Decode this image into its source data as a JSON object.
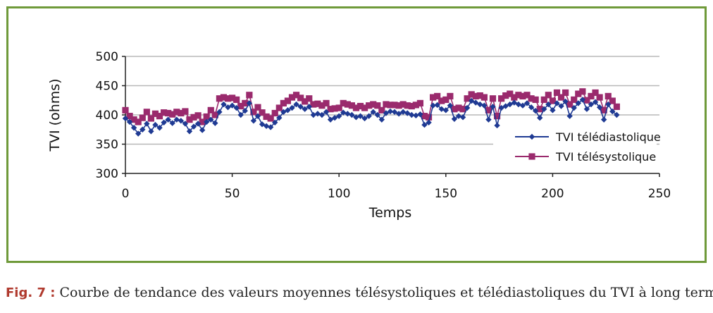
{
  "caption": {
    "label": "Fig. 7 :",
    "text": "Courbe de tendance des valeurs moyennes télésystoliques et télédiastoliques du TVI à long terme."
  },
  "chart_data": {
    "type": "line",
    "xlabel": "Temps",
    "ylabel": "TVI (ohms)",
    "xlim": [
      0,
      250
    ],
    "ylim": [
      300,
      500
    ],
    "x_ticks": [
      0,
      50,
      100,
      150,
      200,
      250
    ],
    "y_ticks": [
      300,
      350,
      400,
      450,
      500
    ],
    "grid": "horizontal",
    "legend_position": "right",
    "series": [
      {
        "name": "TVI télédiastolique",
        "color": "#1f3a93",
        "marker": "diamond",
        "points": [
          [
            0,
            394
          ],
          [
            2,
            388
          ],
          [
            4,
            378
          ],
          [
            6,
            368
          ],
          [
            8,
            375
          ],
          [
            10,
            385
          ],
          [
            12,
            372
          ],
          [
            14,
            383
          ],
          [
            16,
            378
          ],
          [
            18,
            387
          ],
          [
            20,
            392
          ],
          [
            22,
            386
          ],
          [
            24,
            392
          ],
          [
            26,
            390
          ],
          [
            28,
            385
          ],
          [
            30,
            372
          ],
          [
            32,
            380
          ],
          [
            34,
            385
          ],
          [
            36,
            374
          ],
          [
            38,
            388
          ],
          [
            40,
            392
          ],
          [
            42,
            386
          ],
          [
            44,
            405
          ],
          [
            46,
            418
          ],
          [
            48,
            413
          ],
          [
            50,
            416
          ],
          [
            52,
            412
          ],
          [
            54,
            400
          ],
          [
            56,
            407
          ],
          [
            58,
            420
          ],
          [
            60,
            390
          ],
          [
            62,
            398
          ],
          [
            64,
            384
          ],
          [
            66,
            381
          ],
          [
            68,
            379
          ],
          [
            70,
            387
          ],
          [
            72,
            395
          ],
          [
            74,
            405
          ],
          [
            76,
            408
          ],
          [
            78,
            412
          ],
          [
            80,
            418
          ],
          [
            82,
            414
          ],
          [
            84,
            410
          ],
          [
            86,
            414
          ],
          [
            88,
            400
          ],
          [
            90,
            402
          ],
          [
            92,
            400
          ],
          [
            94,
            405
          ],
          [
            96,
            392
          ],
          [
            98,
            395
          ],
          [
            100,
            398
          ],
          [
            102,
            404
          ],
          [
            104,
            402
          ],
          [
            106,
            400
          ],
          [
            108,
            396
          ],
          [
            110,
            398
          ],
          [
            112,
            394
          ],
          [
            114,
            398
          ],
          [
            116,
            405
          ],
          [
            118,
            400
          ],
          [
            120,
            392
          ],
          [
            122,
            403
          ],
          [
            124,
            406
          ],
          [
            126,
            405
          ],
          [
            128,
            402
          ],
          [
            130,
            405
          ],
          [
            132,
            403
          ],
          [
            134,
            400
          ],
          [
            136,
            399
          ],
          [
            138,
            401
          ],
          [
            140,
            383
          ],
          [
            142,
            387
          ],
          [
            144,
            416
          ],
          [
            146,
            417
          ],
          [
            148,
            410
          ],
          [
            150,
            408
          ],
          [
            152,
            416
          ],
          [
            154,
            393
          ],
          [
            156,
            398
          ],
          [
            158,
            396
          ],
          [
            160,
            412
          ],
          [
            162,
            424
          ],
          [
            164,
            421
          ],
          [
            166,
            418
          ],
          [
            168,
            416
          ],
          [
            170,
            392
          ],
          [
            172,
            414
          ],
          [
            174,
            382
          ],
          [
            176,
            412
          ],
          [
            178,
            415
          ],
          [
            180,
            418
          ],
          [
            182,
            421
          ],
          [
            184,
            418
          ],
          [
            186,
            416
          ],
          [
            188,
            420
          ],
          [
            190,
            413
          ],
          [
            192,
            407
          ],
          [
            194,
            395
          ],
          [
            196,
            410
          ],
          [
            198,
            418
          ],
          [
            200,
            408
          ],
          [
            202,
            420
          ],
          [
            204,
            415
          ],
          [
            206,
            423
          ],
          [
            208,
            398
          ],
          [
            210,
            412
          ],
          [
            212,
            420
          ],
          [
            214,
            426
          ],
          [
            216,
            410
          ],
          [
            218,
            418
          ],
          [
            220,
            422
          ],
          [
            222,
            413
          ],
          [
            224,
            392
          ],
          [
            226,
            418
          ],
          [
            228,
            406
          ],
          [
            230,
            400
          ]
        ]
      },
      {
        "name": "TVI télésystolique",
        "color": "#9a2a6d",
        "marker": "square",
        "points": [
          [
            0,
            408
          ],
          [
            2,
            398
          ],
          [
            4,
            392
          ],
          [
            6,
            388
          ],
          [
            8,
            395
          ],
          [
            10,
            405
          ],
          [
            12,
            394
          ],
          [
            14,
            402
          ],
          [
            16,
            398
          ],
          [
            18,
            404
          ],
          [
            20,
            403
          ],
          [
            22,
            401
          ],
          [
            24,
            405
          ],
          [
            26,
            403
          ],
          [
            28,
            406
          ],
          [
            30,
            392
          ],
          [
            32,
            396
          ],
          [
            34,
            399
          ],
          [
            36,
            388
          ],
          [
            38,
            397
          ],
          [
            40,
            408
          ],
          [
            42,
            400
          ],
          [
            44,
            428
          ],
          [
            46,
            430
          ],
          [
            48,
            428
          ],
          [
            50,
            429
          ],
          [
            52,
            426
          ],
          [
            54,
            415
          ],
          [
            56,
            420
          ],
          [
            58,
            434
          ],
          [
            60,
            405
          ],
          [
            62,
            413
          ],
          [
            64,
            404
          ],
          [
            66,
            397
          ],
          [
            68,
            394
          ],
          [
            70,
            403
          ],
          [
            72,
            412
          ],
          [
            74,
            420
          ],
          [
            76,
            424
          ],
          [
            78,
            430
          ],
          [
            80,
            434
          ],
          [
            82,
            429
          ],
          [
            84,
            423
          ],
          [
            86,
            428
          ],
          [
            88,
            418
          ],
          [
            90,
            419
          ],
          [
            92,
            416
          ],
          [
            94,
            420
          ],
          [
            96,
            410
          ],
          [
            98,
            411
          ],
          [
            100,
            412
          ],
          [
            102,
            420
          ],
          [
            104,
            418
          ],
          [
            106,
            416
          ],
          [
            108,
            412
          ],
          [
            110,
            415
          ],
          [
            112,
            412
          ],
          [
            114,
            416
          ],
          [
            116,
            418
          ],
          [
            118,
            416
          ],
          [
            120,
            408
          ],
          [
            122,
            418
          ],
          [
            124,
            417
          ],
          [
            126,
            417
          ],
          [
            128,
            416
          ],
          [
            130,
            418
          ],
          [
            132,
            416
          ],
          [
            134,
            415
          ],
          [
            136,
            417
          ],
          [
            138,
            420
          ],
          [
            140,
            398
          ],
          [
            142,
            396
          ],
          [
            144,
            430
          ],
          [
            146,
            432
          ],
          [
            148,
            424
          ],
          [
            150,
            426
          ],
          [
            152,
            432
          ],
          [
            154,
            410
          ],
          [
            156,
            412
          ],
          [
            158,
            410
          ],
          [
            160,
            428
          ],
          [
            162,
            435
          ],
          [
            164,
            432
          ],
          [
            166,
            433
          ],
          [
            168,
            430
          ],
          [
            170,
            408
          ],
          [
            172,
            428
          ],
          [
            174,
            398
          ],
          [
            176,
            428
          ],
          [
            178,
            433
          ],
          [
            180,
            436
          ],
          [
            182,
            430
          ],
          [
            184,
            434
          ],
          [
            186,
            432
          ],
          [
            188,
            434
          ],
          [
            190,
            428
          ],
          [
            192,
            426
          ],
          [
            194,
            410
          ],
          [
            196,
            426
          ],
          [
            198,
            434
          ],
          [
            200,
            424
          ],
          [
            202,
            438
          ],
          [
            204,
            430
          ],
          [
            206,
            438
          ],
          [
            208,
            418
          ],
          [
            210,
            426
          ],
          [
            212,
            436
          ],
          [
            214,
            440
          ],
          [
            216,
            425
          ],
          [
            218,
            432
          ],
          [
            220,
            438
          ],
          [
            222,
            430
          ],
          [
            224,
            408
          ],
          [
            226,
            432
          ],
          [
            228,
            424
          ],
          [
            230,
            414
          ]
        ]
      }
    ]
  }
}
